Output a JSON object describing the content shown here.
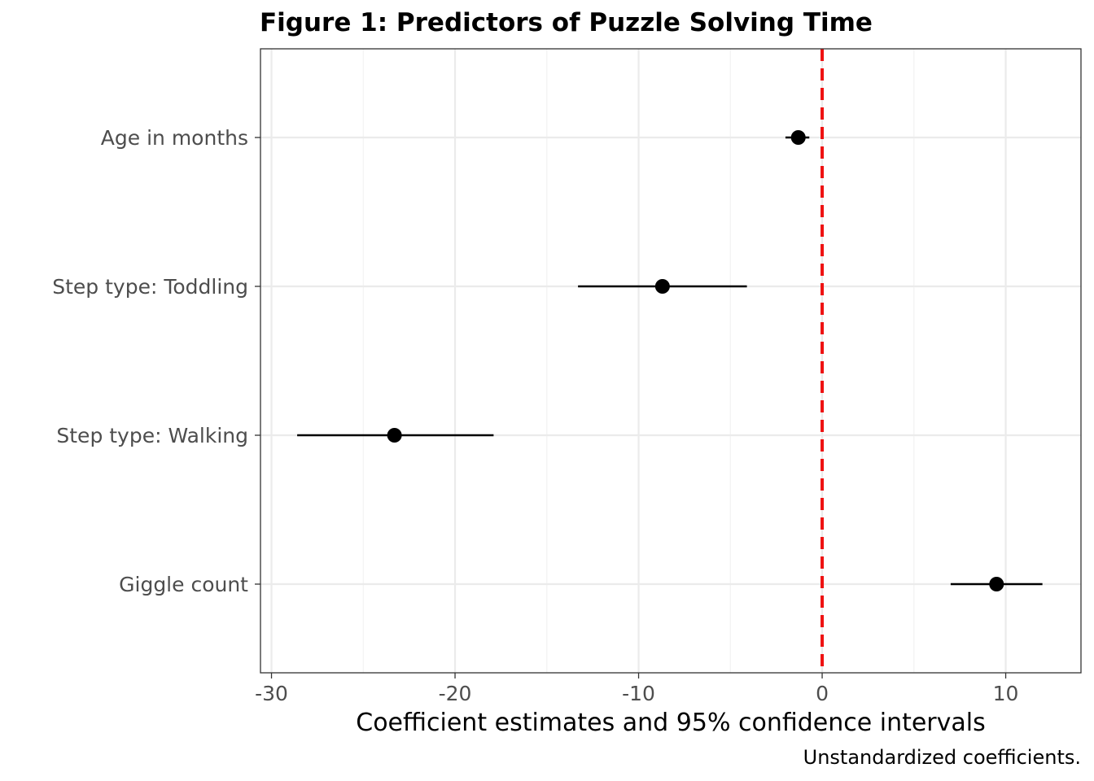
{
  "chart_data": {
    "type": "scatter",
    "subtype": "coefficient-plot",
    "title": "Figure 1: Predictors of Puzzle Solving Time",
    "xlabel": "Coefficient estimates and 95% confidence intervals",
    "ylabel": "",
    "caption": "Unstandardized coefficients.",
    "xlim": [
      -30.6,
      14.1
    ],
    "xticks": [
      -30,
      -20,
      -10,
      0,
      10
    ],
    "xtick_labels": [
      "-30",
      "-20",
      "-10",
      "0",
      "10"
    ],
    "grid": true,
    "reference_line": {
      "x": 0,
      "style": "dashed",
      "color": "#ee1111"
    },
    "point_color": "#000000",
    "terms": [
      {
        "label": "Age in months",
        "estimate": -1.3,
        "ci_low": -2.0,
        "ci_high": -0.7
      },
      {
        "label": "Step type: Toddling",
        "estimate": -8.7,
        "ci_low": -13.3,
        "ci_high": -4.1
      },
      {
        "label": "Step type: Walking",
        "estimate": -23.3,
        "ci_low": -28.6,
        "ci_high": -17.9
      },
      {
        "label": "Giggle count",
        "estimate": 9.5,
        "ci_low": 7.0,
        "ci_high": 12.0
      }
    ]
  }
}
